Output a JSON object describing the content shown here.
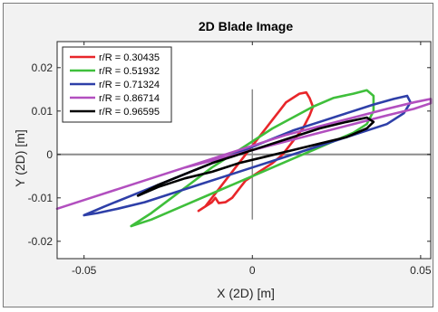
{
  "chart_data": {
    "type": "line",
    "title": "2D Blade Image",
    "xlabel": "X (2D) [m]",
    "ylabel": "Y (2D) [m]",
    "xlim": [
      -0.058,
      0.053
    ],
    "ylim": [
      -0.024,
      0.026
    ],
    "xticks": [
      -0.05,
      0,
      0.05
    ],
    "xtick_labels": [
      "-0.05",
      "0",
      "0.05"
    ],
    "yticks": [
      -0.02,
      -0.01,
      0,
      0.01,
      0.02
    ],
    "ytick_labels": [
      "-0.02",
      "-0.01",
      "0",
      "0.01",
      "0.02"
    ],
    "grid": false,
    "legend_position": "top-left",
    "reference_lines": {
      "horizontal_y": 0,
      "vertical_x": 0,
      "vertical_range": [
        -0.015,
        0.015
      ]
    },
    "series": [
      {
        "name": "r/R = 0.30435",
        "color": "#e8262a",
        "x": [
          -0.016,
          -0.014,
          -0.012,
          -0.01,
          -0.008,
          -0.006,
          -0.004,
          -0.002,
          0.0,
          0.002,
          0.004,
          0.006,
          0.008,
          0.01,
          0.012,
          0.014,
          0.016,
          0.017,
          0.018,
          0.017,
          0.015,
          0.012,
          0.009,
          0.006,
          0.004,
          0.002,
          0.0,
          -0.002,
          -0.004,
          -0.006,
          -0.008,
          -0.01,
          -0.011,
          -0.012,
          -0.014,
          -0.016
        ],
        "y": [
          -0.013,
          -0.012,
          -0.01,
          -0.008,
          -0.006,
          -0.004,
          -0.002,
          0.0,
          0.002,
          0.004,
          0.006,
          0.008,
          0.01,
          0.012,
          0.013,
          0.014,
          0.0143,
          0.013,
          0.011,
          0.009,
          0.006,
          0.003,
          0.0,
          -0.002,
          -0.003,
          -0.004,
          -0.005,
          -0.006,
          -0.008,
          -0.01,
          -0.011,
          -0.0112,
          -0.01,
          -0.011,
          -0.012,
          -0.013
        ]
      },
      {
        "name": "r/R = 0.51932",
        "color": "#3fbf3b",
        "x": [
          -0.036,
          -0.03,
          -0.024,
          -0.018,
          -0.012,
          -0.006,
          0.0,
          0.006,
          0.012,
          0.018,
          0.024,
          0.03,
          0.034,
          0.036,
          0.036,
          0.034,
          0.03,
          0.024,
          0.018,
          0.012,
          0.006,
          0.0,
          -0.006,
          -0.012,
          -0.018,
          -0.024,
          -0.03,
          -0.036
        ],
        "y": [
          -0.0165,
          -0.0135,
          -0.01,
          -0.0065,
          -0.003,
          0.0,
          0.003,
          0.006,
          0.0085,
          0.011,
          0.013,
          0.014,
          0.0148,
          0.0135,
          0.01,
          0.007,
          0.005,
          0.003,
          0.001,
          -0.001,
          -0.003,
          -0.005,
          -0.007,
          -0.009,
          -0.011,
          -0.013,
          -0.015,
          -0.0165
        ]
      },
      {
        "name": "r/R = 0.71324",
        "color": "#2e3fa8",
        "x": [
          -0.05,
          -0.044,
          -0.036,
          -0.028,
          -0.02,
          -0.012,
          -0.004,
          0.004,
          0.012,
          0.02,
          0.028,
          0.036,
          0.042,
          0.046,
          0.047,
          0.045,
          0.04,
          0.032,
          0.024,
          0.016,
          0.008,
          0.0,
          -0.008,
          -0.016,
          -0.024,
          -0.032,
          -0.04,
          -0.046,
          -0.05
        ],
        "y": [
          -0.014,
          -0.012,
          -0.0095,
          -0.007,
          -0.0045,
          -0.002,
          0.0005,
          0.003,
          0.0055,
          0.0075,
          0.0095,
          0.0115,
          0.0128,
          0.0135,
          0.012,
          0.0095,
          0.007,
          0.005,
          0.003,
          0.001,
          -0.001,
          -0.003,
          -0.005,
          -0.007,
          -0.009,
          -0.011,
          -0.0125,
          -0.0135,
          -0.014
        ]
      },
      {
        "name": "r/R = 0.86714",
        "color": "#b24fbf",
        "x": [
          -0.058,
          -0.05,
          -0.04,
          -0.03,
          -0.02,
          -0.01,
          0.0,
          0.01,
          0.02,
          0.03,
          0.04,
          0.048,
          0.053,
          0.053,
          0.048,
          0.04,
          0.03,
          0.02,
          0.01,
          0.0,
          -0.01,
          -0.02,
          -0.03,
          -0.04,
          -0.05,
          -0.058
        ],
        "y": [
          -0.0125,
          -0.0105,
          -0.008,
          -0.0055,
          -0.003,
          -0.0005,
          0.002,
          0.0045,
          0.0065,
          0.0085,
          0.0105,
          0.012,
          0.0128,
          0.0118,
          0.0105,
          0.009,
          0.007,
          0.005,
          0.003,
          0.001,
          -0.001,
          -0.003,
          -0.0055,
          -0.008,
          -0.0105,
          -0.0125
        ]
      },
      {
        "name": "r/R = 0.96595",
        "color": "#000000",
        "x": [
          -0.034,
          -0.028,
          -0.02,
          -0.012,
          -0.004,
          0.004,
          0.012,
          0.02,
          0.028,
          0.034,
          0.036,
          0.034,
          0.028,
          0.02,
          0.012,
          0.004,
          -0.004,
          -0.012,
          -0.02,
          -0.028,
          -0.034
        ],
        "y": [
          -0.0095,
          -0.007,
          -0.0045,
          -0.002,
          0.0,
          0.002,
          0.004,
          0.006,
          0.0075,
          0.0085,
          0.0075,
          0.006,
          0.004,
          0.0025,
          0.001,
          -0.0005,
          -0.002,
          -0.004,
          -0.0055,
          -0.0075,
          -0.0095
        ]
      }
    ]
  }
}
